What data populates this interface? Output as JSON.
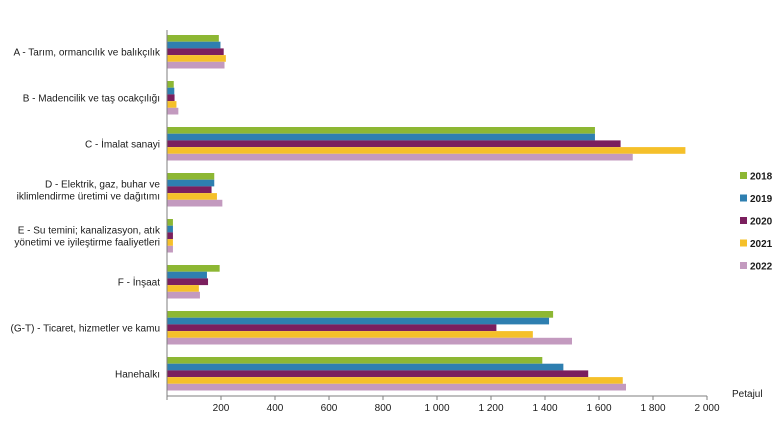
{
  "chart_data": {
    "type": "bar",
    "orientation": "horizontal",
    "categories": [
      [
        "A - Tarım, ormancılık ve balıkçılık"
      ],
      [
        "B - Madencilik ve taş ocakçılığı"
      ],
      [
        "C - İmalat sanayi"
      ],
      [
        "D - Elektrik, gaz, buhar ve",
        "iklimlendirme üretimi ve dağıtımı"
      ],
      [
        "E - Su temini; kanalizasyon, atık",
        "yönetimi ve iyileştirme faaliyetleri"
      ],
      [
        "F - İnşaat"
      ],
      [
        "(G-T) - Ticaret, hizmetler ve kamu"
      ],
      [
        "Hanehalkı"
      ]
    ],
    "series": [
      {
        "name": "2018",
        "color": "#8DB733",
        "values": [
          192,
          25,
          1585,
          175,
          22,
          195,
          1430,
          1390
        ]
      },
      {
        "name": "2019",
        "color": "#2E7FB0",
        "values": [
          198,
          27,
          1585,
          175,
          22,
          148,
          1415,
          1468
        ]
      },
      {
        "name": "2020",
        "color": "#7B1F5E",
        "values": [
          210,
          28,
          1680,
          165,
          22,
          152,
          1220,
          1560
        ]
      },
      {
        "name": "2021",
        "color": "#F5C02A",
        "values": [
          218,
          35,
          1920,
          185,
          22,
          118,
          1355,
          1688
        ]
      },
      {
        "name": "2022",
        "color": "#C39ABF",
        "values": [
          213,
          42,
          1725,
          205,
          22,
          122,
          1500,
          1700
        ]
      }
    ],
    "xlim": [
      0,
      2000
    ],
    "xticks": [
      0,
      200,
      400,
      600,
      800,
      1000,
      1200,
      1400,
      1600,
      1800,
      2000
    ],
    "xtick_labels": [
      "",
      "200",
      "400",
      "600",
      "800",
      "1 000",
      "1 200",
      "1 400",
      "1 600",
      "1 800",
      "2 000"
    ],
    "xlabel": "Petajul",
    "legend_position": "right",
    "grid": false
  }
}
